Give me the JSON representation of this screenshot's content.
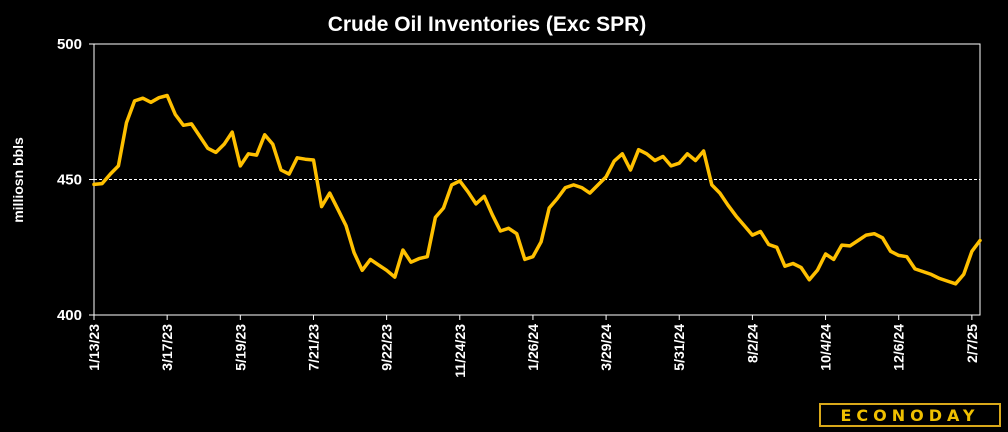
{
  "chart_data": {
    "type": "line",
    "title": "Crude Oil Inventories (Exc SPR)",
    "ylabel": "milliosn bbls",
    "xlabel": "",
    "ylim": [
      400,
      500
    ],
    "yticks": [
      400,
      450,
      500
    ],
    "grid": "dashed line at 450",
    "xtick_labels": [
      "1/13/23",
      "3/17/23",
      "5/19/23",
      "7/21/23",
      "9/22/23",
      "11/24/23",
      "1/26/24",
      "3/29/24",
      "5/31/24",
      "8/2/24",
      "10/4/24",
      "12/6/24",
      "2/7/25"
    ],
    "series": [
      {
        "color": "#ffc000",
        "values": [
          448.2,
          448.5,
          452.0,
          455.0,
          471.0,
          479.0,
          480.0,
          478.5,
          480.2,
          481.0,
          474.0,
          470.0,
          470.5,
          466.0,
          461.5,
          460.0,
          463.0,
          467.5,
          455.0,
          459.5,
          459.0,
          466.5,
          463.0,
          453.5,
          452.0,
          458.0,
          457.5,
          457.2,
          440.0,
          445.0,
          439.0,
          433.0,
          423.0,
          416.5,
          420.5,
          418.5,
          416.5,
          414.0,
          424.0,
          419.5,
          420.8,
          421.5,
          436.0,
          439.5,
          448.0,
          449.5,
          445.5,
          441.0,
          443.8,
          437.0,
          431.0,
          432.0,
          430.0,
          420.5,
          421.5,
          427.0,
          439.5,
          443.0,
          447.0,
          448.0,
          447.0,
          445.0,
          448.0,
          451.0,
          456.8,
          459.5,
          453.5,
          461.0,
          459.5,
          457.0,
          458.5,
          455.0,
          456.0,
          459.5,
          457.0,
          460.5,
          448.0,
          445.0,
          440.5,
          436.5,
          433.0,
          429.5,
          430.8,
          426.0,
          425.0,
          418.0,
          419.0,
          417.5,
          413.0,
          416.5,
          422.5,
          420.5,
          425.8,
          425.5,
          427.5,
          429.5,
          430.0,
          428.5,
          423.5,
          422.0,
          421.5,
          417.0,
          416.0,
          415.0,
          413.5,
          412.5,
          411.5,
          415.0,
          423.5,
          427.5
        ]
      }
    ]
  },
  "brand": {
    "logo_text": "ECONODAY",
    "registered": "®"
  },
  "colors": {
    "background": "#000000",
    "line": "#ffc000",
    "text": "#ffffff",
    "logo": "#f0c000"
  }
}
